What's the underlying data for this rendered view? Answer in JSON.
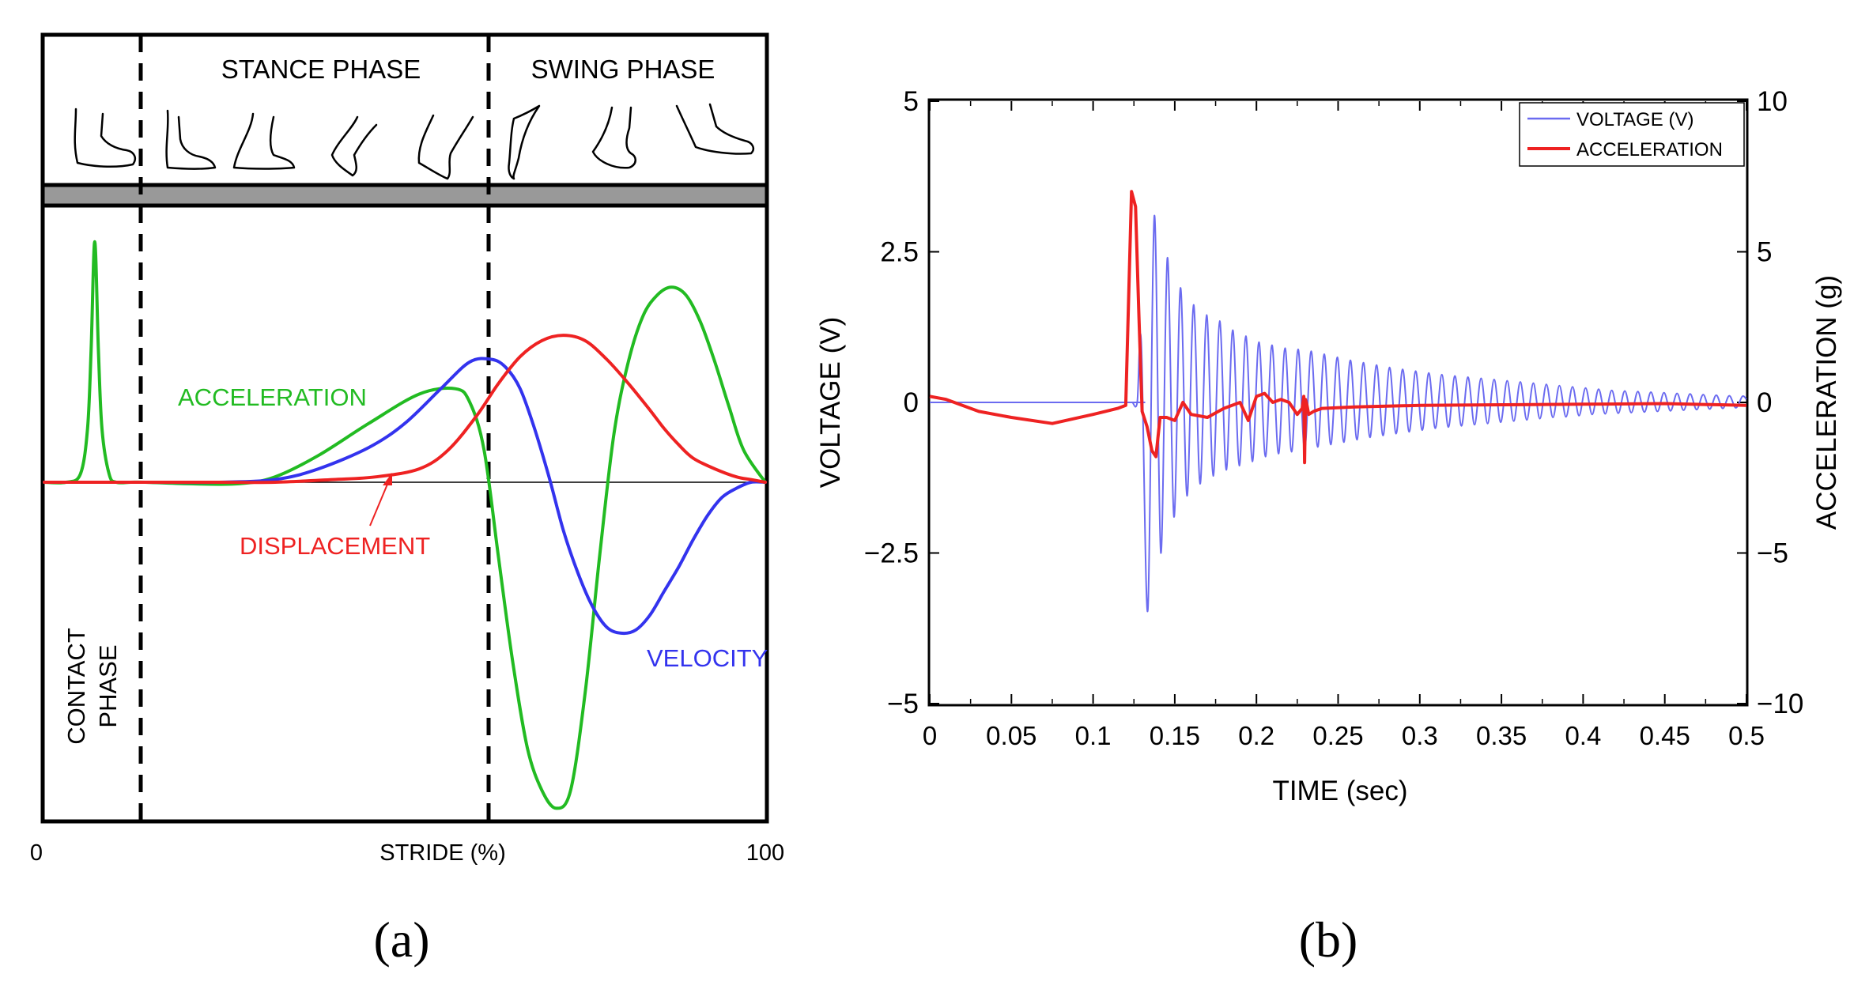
{
  "figure": {
    "panel_a_caption": "(a)",
    "panel_b_caption": "(b)"
  },
  "colors": {
    "green": "#22bb22",
    "red": "#ee2222",
    "blue": "#3333ee",
    "light_blue": "#6b6bf0",
    "black": "#000000",
    "gray_band": "#999999"
  },
  "chart_data": [
    {
      "type": "line",
      "title": "",
      "xlabel": "STRIDE (%)",
      "ylabel": "",
      "xlim": [
        0,
        100
      ],
      "ylim": [
        -1.1,
        1.0
      ],
      "x_ticks": [
        {
          "value": 0,
          "label": "0"
        },
        {
          "value": 100,
          "label": "100"
        }
      ],
      "phases": {
        "stance_label": "STANCE PHASE",
        "swing_label": "SWING PHASE",
        "contact_label_line1": "CONTACT",
        "contact_label_line2": "PHASE",
        "boundaries": [
          13.5,
          61
        ]
      },
      "annotations": {
        "acceleration": "ACCELERATION",
        "displacement": "DISPLACEMENT",
        "velocity": "VELOCITY"
      },
      "series": [
        {
          "name": "ACCELERATION",
          "color": "#22bb22",
          "x": [
            0,
            3,
            5,
            6,
            6.5,
            7,
            7.5,
            8,
            9,
            10,
            12,
            14,
            20,
            27,
            32,
            38,
            45,
            52,
            57,
            59,
            61,
            63,
            65,
            67,
            69,
            71,
            73,
            75,
            77,
            79,
            81,
            83,
            85,
            87,
            89,
            91,
            93,
            95,
            97,
            100
          ],
          "values": [
            0,
            0,
            0.03,
            0.2,
            0.5,
            0.9,
            0.5,
            0.2,
            0.03,
            0,
            0,
            0,
            -0.005,
            -0.005,
            0.02,
            0.1,
            0.22,
            0.33,
            0.35,
            0.3,
            0.12,
            -0.25,
            -0.6,
            -0.88,
            -1.02,
            -1.08,
            -1.02,
            -0.7,
            -0.25,
            0.18,
            0.45,
            0.62,
            0.7,
            0.73,
            0.7,
            0.6,
            0.45,
            0.28,
            0.12,
            0
          ]
        },
        {
          "name": "VELOCITY",
          "color": "#3333ee",
          "x": [
            0,
            14,
            24,
            32,
            38,
            45,
            50,
            55,
            59,
            62,
            64,
            66,
            68,
            70,
            72,
            74,
            76,
            78,
            80,
            82,
            84,
            86,
            88,
            90,
            92,
            94,
            96,
            98,
            100
          ],
          "values": [
            0,
            0,
            0,
            0.01,
            0.05,
            0.13,
            0.22,
            0.35,
            0.45,
            0.46,
            0.43,
            0.35,
            0.2,
            0.02,
            -0.16,
            -0.3,
            -0.41,
            -0.48,
            -0.5,
            -0.49,
            -0.44,
            -0.36,
            -0.28,
            -0.19,
            -0.11,
            -0.05,
            -0.02,
            0,
            0
          ]
        },
        {
          "name": "DISPLACEMENT",
          "color": "#ee2222",
          "x": [
            0,
            14,
            24,
            32,
            40,
            46,
            52,
            56,
            60,
            63,
            66,
            69,
            72,
            75,
            78,
            81,
            84,
            86,
            88,
            90,
            93,
            96,
            98,
            100
          ],
          "values": [
            0,
            0,
            0,
            0,
            0.01,
            0.02,
            0.05,
            0.12,
            0.25,
            0.37,
            0.47,
            0.53,
            0.55,
            0.53,
            0.46,
            0.37,
            0.27,
            0.2,
            0.14,
            0.09,
            0.05,
            0.02,
            0.01,
            0
          ]
        }
      ]
    },
    {
      "type": "line",
      "title": "",
      "xlabel": "TIME (sec)",
      "ylabel": "VOLTAGE (V)",
      "ylabel_right": "ACCELERATION (g)",
      "xlim": [
        0,
        0.5
      ],
      "ylim": [
        -5,
        5
      ],
      "ylim_right": [
        -10,
        10
      ],
      "x_ticks": [
        "0",
        "0.05",
        "0.1",
        "0.15",
        "0.2",
        "0.25",
        "0.3",
        "0.35",
        "0.4",
        "0.45",
        "0.5"
      ],
      "y_ticks_left": [
        {
          "value": -5,
          "label": "−5"
        },
        {
          "value": -2.5,
          "label": "−2.5"
        },
        {
          "value": 0,
          "label": "0"
        },
        {
          "value": 2.5,
          "label": "2.5"
        },
        {
          "value": 5,
          "label": "5"
        }
      ],
      "y_ticks_right": [
        {
          "value": -10,
          "label": "−10"
        },
        {
          "value": -5,
          "label": "−5"
        },
        {
          "value": 0,
          "label": "0"
        },
        {
          "value": 5,
          "label": "5"
        },
        {
          "value": 10,
          "label": "10"
        }
      ],
      "legend": {
        "position": "top-right",
        "entries": [
          {
            "label": "VOLTAGE (V)",
            "color": "#6b6bf0"
          },
          {
            "label": "ACCELERATION",
            "color": "#ee2222"
          }
        ]
      },
      "series": [
        {
          "name": "VOLTAGE (V)",
          "axis": "left",
          "color": "#6b6bf0",
          "x": [
            0,
            0.122,
            0.124,
            0.127,
            0.1295,
            0.1335,
            0.1375,
            0.1415,
            0.1455,
            0.1495,
            0.1535,
            0.1575,
            0.1615,
            0.1655,
            0.1695,
            0.1735,
            0.1775,
            0.1815,
            0.1855,
            0.1895,
            0.1935,
            0.1975,
            0.2015,
            0.2055,
            0.2095,
            0.2135,
            0.2175,
            0.2215,
            0.2255,
            0.2295,
            0.2335,
            0.2375,
            0.2415,
            0.2455,
            0.2495,
            0.2535,
            0.2575,
            0.2615,
            0.2655,
            0.2695,
            0.2735,
            0.2775,
            0.2815,
            0.2855,
            0.2895,
            0.2935,
            0.2975,
            0.3015,
            0.3055,
            0.3095,
            0.3135,
            0.3175,
            0.3215,
            0.3255,
            0.3295,
            0.3335,
            0.3375,
            0.3415,
            0.3455,
            0.3495,
            0.3535,
            0.3575,
            0.3615,
            0.3655,
            0.3695,
            0.3735,
            0.3775,
            0.3815,
            0.3855,
            0.3895,
            0.3935,
            0.3975,
            0.4015,
            0.4055,
            0.4095,
            0.4135,
            0.4175,
            0.4215,
            0.4255,
            0.4295,
            0.4335,
            0.4375,
            0.4415,
            0.4455,
            0.4495,
            0.4535,
            0.4575,
            0.4615,
            0.4655,
            0.4695,
            0.4735,
            0.4775,
            0.4815,
            0.4855,
            0.4895,
            0.4935,
            0.4975,
            0.5
          ],
          "values": [
            0,
            0,
            0,
            0,
            1.0,
            -3.45,
            3.1,
            -2.5,
            2.4,
            -1.9,
            1.9,
            -1.55,
            1.62,
            -1.35,
            1.45,
            -1.22,
            1.35,
            -1.12,
            1.2,
            -1.05,
            1.1,
            -0.98,
            1.0,
            -0.9,
            0.95,
            -0.85,
            0.9,
            -0.82,
            0.88,
            -0.78,
            0.85,
            -0.74,
            0.8,
            -0.7,
            0.75,
            -0.66,
            0.7,
            -0.62,
            0.66,
            -0.58,
            0.62,
            -0.55,
            0.58,
            -0.52,
            0.55,
            -0.49,
            0.52,
            -0.46,
            0.49,
            -0.43,
            0.46,
            -0.41,
            0.44,
            -0.39,
            0.42,
            -0.37,
            0.4,
            -0.35,
            0.38,
            -0.33,
            0.36,
            -0.31,
            0.34,
            -0.29,
            0.32,
            -0.27,
            0.3,
            -0.25,
            0.28,
            -0.24,
            0.26,
            -0.22,
            0.24,
            -0.2,
            0.22,
            -0.19,
            0.2,
            -0.18,
            0.19,
            -0.17,
            0.18,
            -0.16,
            0.17,
            -0.15,
            0.16,
            -0.14,
            0.15,
            -0.13,
            0.14,
            -0.12,
            0.13,
            -0.11,
            0.12,
            -0.1,
            0.11,
            -0.09,
            0.1,
            0.05
          ]
        },
        {
          "name": "ACCELERATION",
          "axis": "right",
          "color": "#ee2222",
          "x": [
            0,
            0.01,
            0.03,
            0.05,
            0.075,
            0.1,
            0.115,
            0.12,
            0.1235,
            0.126,
            0.128,
            0.13,
            0.133,
            0.136,
            0.1385,
            0.141,
            0.145,
            0.15,
            0.155,
            0.16,
            0.17,
            0.18,
            0.19,
            0.195,
            0.2,
            0.205,
            0.21,
            0.215,
            0.22,
            0.225,
            0.228,
            0.229,
            0.2295,
            0.23,
            0.231,
            0.232,
            0.235,
            0.24,
            0.26,
            0.3,
            0.35,
            0.4,
            0.45,
            0.5
          ],
          "values": [
            0.2,
            0.1,
            -0.3,
            -0.5,
            -0.7,
            -0.4,
            -0.2,
            -0.1,
            7.0,
            6.5,
            3.0,
            -0.3,
            -0.8,
            -1.6,
            -1.8,
            -0.5,
            -0.5,
            -0.6,
            0,
            -0.4,
            -0.5,
            -0.2,
            0,
            -0.6,
            0.2,
            0.3,
            0,
            0.1,
            0,
            -0.4,
            -0.2,
            0.2,
            -2.0,
            0.1,
            -0.1,
            -0.4,
            -0.3,
            -0.2,
            -0.15,
            -0.1,
            -0.08,
            -0.06,
            -0.04,
            -0.1
          ]
        }
      ]
    }
  ]
}
